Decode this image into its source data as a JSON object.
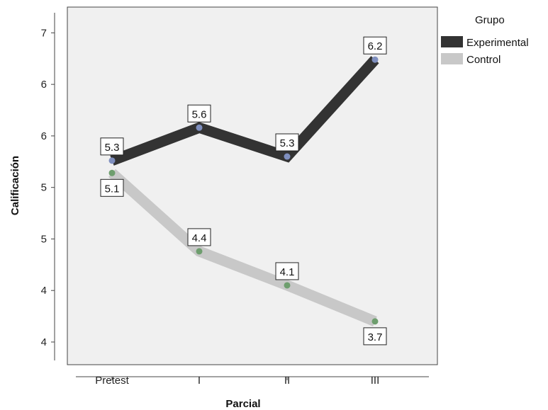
{
  "chart_data": {
    "type": "line",
    "title": "",
    "xlabel": "Parcial",
    "ylabel": "Calificación",
    "categories": [
      "Pretest",
      "I",
      "II",
      "III"
    ],
    "y_ticks": [
      {
        "value": 3.5,
        "label": "4"
      },
      {
        "value": 4.0,
        "label": "4"
      },
      {
        "value": 4.5,
        "label": "5"
      },
      {
        "value": 5.0,
        "label": "5"
      },
      {
        "value": 5.5,
        "label": "6"
      },
      {
        "value": 6.0,
        "label": "6"
      },
      {
        "value": 6.5,
        "label": "7"
      }
    ],
    "ylim": [
      3.28,
      6.75
    ],
    "grid": false,
    "legend": {
      "title": "Grupo",
      "placement": "top-right"
    },
    "series": [
      {
        "name": "Experimental",
        "color": "#333333",
        "marker_color": "#7f8fbf",
        "values": [
          5.26,
          5.58,
          5.3,
          6.24
        ],
        "labels": [
          "5.3",
          "5.6",
          "5.3",
          "6.2"
        ]
      },
      {
        "name": "Control",
        "color": "#c8c8c8",
        "marker_color": "#6e9e6e",
        "values": [
          5.14,
          4.38,
          4.05,
          3.7
        ],
        "labels": [
          "5.1",
          "4.4",
          "4.1",
          "3.7"
        ]
      }
    ]
  }
}
